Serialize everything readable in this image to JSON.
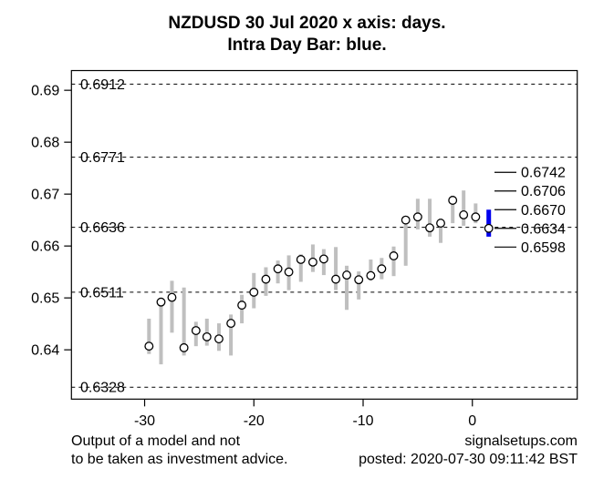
{
  "title": {
    "line1": "NZDUSD 30 Jul 2020 x axis: days.",
    "line2": "Intra Day Bar: blue."
  },
  "footer": {
    "disclaimer_line1": "Output of a model and not",
    "disclaimer_line2": "to be taken as investment advice.",
    "website": "signalsetups.com",
    "posted": "posted: 2020-07-30 09:11:42 BST"
  },
  "chart_data": {
    "type": "bar",
    "title": "NZDUSD 30 Jul 2020 x axis: days.",
    "subtitle": "Intra Day Bar: blue.",
    "xlabel": "",
    "ylabel": "",
    "legend": "none",
    "grid": "horizontal dashed level lines",
    "xlim": [
      -36.7,
      9.6
    ],
    "ylim": [
      0.6305,
      0.6938
    ],
    "x_ticks": [
      {
        "value": -30,
        "label": "-30"
      },
      {
        "value": -20,
        "label": "-20"
      },
      {
        "value": -10,
        "label": "-10"
      },
      {
        "value": 0,
        "label": "0"
      }
    ],
    "y_ticks": [
      {
        "value": 0.69,
        "label": "0.69"
      },
      {
        "value": 0.68,
        "label": "0.68"
      },
      {
        "value": 0.67,
        "label": "0.67"
      },
      {
        "value": 0.66,
        "label": "0.66"
      },
      {
        "value": 0.65,
        "label": "0.65"
      },
      {
        "value": 0.64,
        "label": "0.64"
      }
    ],
    "levels": [
      {
        "value": 0.6912,
        "label": "0.6912"
      },
      {
        "value": 0.6771,
        "label": "0.6771"
      },
      {
        "value": 0.6636,
        "label": "0.6636"
      },
      {
        "value": 0.6511,
        "label": "0.6511"
      },
      {
        "value": 0.6328,
        "label": "0.6328"
      }
    ],
    "right_price_labels": [
      {
        "value": 0.6742,
        "label": "0.6742"
      },
      {
        "value": 0.6706,
        "label": "0.6706"
      },
      {
        "value": 0.667,
        "label": "0.6670"
      },
      {
        "value": 0.6634,
        "label": "0.6634"
      },
      {
        "value": 0.6598,
        "label": "0.6598"
      }
    ],
    "daily_bars": [
      {
        "day": -29.6,
        "high": 0.646,
        "low": 0.6392,
        "close": 0.6407
      },
      {
        "day": -28.5,
        "high": 0.6495,
        "low": 0.6372,
        "close": 0.6492
      },
      {
        "day": -27.5,
        "high": 0.6533,
        "low": 0.6433,
        "close": 0.6501
      },
      {
        "day": -26.4,
        "high": 0.652,
        "low": 0.6389,
        "close": 0.6404
      },
      {
        "day": -25.3,
        "high": 0.6454,
        "low": 0.6407,
        "close": 0.6437
      },
      {
        "day": -24.3,
        "high": 0.646,
        "low": 0.6408,
        "close": 0.6425
      },
      {
        "day": -23.2,
        "high": 0.6451,
        "low": 0.6398,
        "close": 0.6421
      },
      {
        "day": -22.1,
        "high": 0.6468,
        "low": 0.6389,
        "close": 0.6451
      },
      {
        "day": -21.1,
        "high": 0.6506,
        "low": 0.6451,
        "close": 0.6486
      },
      {
        "day": -20.0,
        "high": 0.6548,
        "low": 0.648,
        "close": 0.6511
      },
      {
        "day": -18.9,
        "high": 0.6559,
        "low": 0.6504,
        "close": 0.6536
      },
      {
        "day": -17.8,
        "high": 0.6572,
        "low": 0.6528,
        "close": 0.6556
      },
      {
        "day": -16.8,
        "high": 0.6582,
        "low": 0.6515,
        "close": 0.655
      },
      {
        "day": -15.7,
        "high": 0.6584,
        "low": 0.6531,
        "close": 0.6574
      },
      {
        "day": -14.6,
        "high": 0.6603,
        "low": 0.655,
        "close": 0.6569
      },
      {
        "day": -13.6,
        "high": 0.6594,
        "low": 0.6544,
        "close": 0.6575
      },
      {
        "day": -12.5,
        "high": 0.6598,
        "low": 0.6515,
        "close": 0.6536
      },
      {
        "day": -11.5,
        "high": 0.6562,
        "low": 0.6477,
        "close": 0.6544
      },
      {
        "day": -10.4,
        "high": 0.6551,
        "low": 0.6497,
        "close": 0.6535
      },
      {
        "day": -9.3,
        "high": 0.6574,
        "low": 0.6533,
        "close": 0.6543
      },
      {
        "day": -8.3,
        "high": 0.6577,
        "low": 0.6536,
        "close": 0.6556
      },
      {
        "day": -7.2,
        "high": 0.6599,
        "low": 0.6542,
        "close": 0.6581
      },
      {
        "day": -6.1,
        "high": 0.6656,
        "low": 0.6562,
        "close": 0.665
      },
      {
        "day": -5.0,
        "high": 0.6691,
        "low": 0.6632,
        "close": 0.6656
      },
      {
        "day": -3.9,
        "high": 0.6691,
        "low": 0.6618,
        "close": 0.6635
      },
      {
        "day": -2.9,
        "high": 0.6653,
        "low": 0.6606,
        "close": 0.6644
      },
      {
        "day": -1.8,
        "high": 0.6697,
        "low": 0.6644,
        "close": 0.6688
      },
      {
        "day": -0.8,
        "high": 0.6707,
        "low": 0.6639,
        "close": 0.666
      },
      {
        "day": 0.3,
        "high": 0.6682,
        "low": 0.6644,
        "close": 0.6656
      }
    ],
    "intraday_bar": {
      "day": 1.5,
      "high": 0.667,
      "low": 0.6618,
      "close": 0.6634
    },
    "colors": {
      "daily_bar": "#bfbfbf",
      "intraday_bar": "#0000ee",
      "axis": "#000000",
      "text": "#000000",
      "close_marker_fill": "#ffffff"
    }
  }
}
